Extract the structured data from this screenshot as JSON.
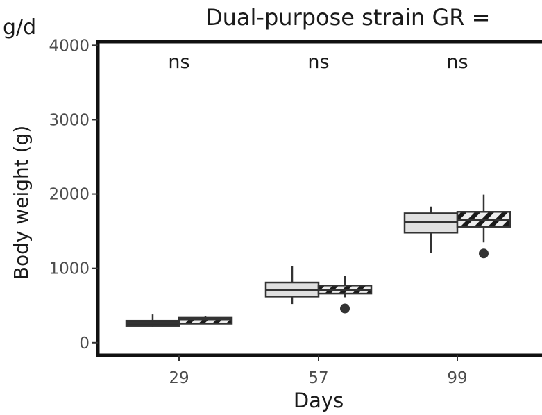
{
  "header": {
    "left_label": "g/d",
    "title": "Dual-purpose strain GR ="
  },
  "chart_data": {
    "type": "box",
    "xlabel": "Days",
    "ylabel": "Body weight (g)",
    "ylim": [
      -170,
      4050
    ],
    "yticks": [
      0,
      1000,
      2000,
      3000,
      4000
    ],
    "categories": [
      "29",
      "57",
      "99"
    ],
    "annotations": [
      "ns",
      "ns",
      "ns"
    ],
    "grid": false,
    "series": [
      {
        "fill": "plain",
        "colors": [
          "#2e2e2e",
          "#e0e0e0",
          "#e0e0e0"
        ],
        "boxes": [
          {
            "min": 215,
            "q1": 225,
            "median": 265,
            "q3": 295,
            "max": 380,
            "outliers": []
          },
          {
            "min": 520,
            "q1": 620,
            "median": 710,
            "q3": 810,
            "max": 1030,
            "outliers": []
          },
          {
            "min": 1210,
            "q1": 1480,
            "median": 1620,
            "q3": 1740,
            "max": 1830,
            "outliers": []
          }
        ]
      },
      {
        "fill": "hatched",
        "colors": [
          "#2e2e2e",
          "#2e2e2e",
          "#2e2e2e"
        ],
        "boxes": [
          {
            "min": 250,
            "q1": 255,
            "median": 315,
            "q3": 335,
            "max": 360,
            "outliers": []
          },
          {
            "min": 610,
            "q1": 660,
            "median": 710,
            "q3": 770,
            "max": 900,
            "outliers": [
              460
            ]
          },
          {
            "min": 1350,
            "q1": 1560,
            "median": 1650,
            "q3": 1760,
            "max": 1990,
            "outliers": [
              1200
            ]
          }
        ]
      }
    ]
  }
}
